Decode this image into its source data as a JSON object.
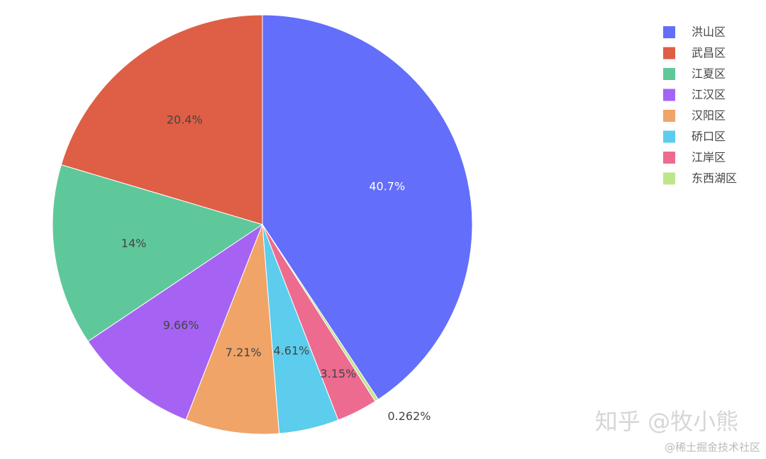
{
  "chart_data": {
    "type": "pie",
    "categories": [
      "洪山区",
      "武昌区",
      "江夏区",
      "江汉区",
      "汉阳区",
      "硚口区",
      "江岸区",
      "东西湖区"
    ],
    "values": [
      40.7,
      20.4,
      14,
      9.66,
      7.21,
      4.61,
      3.15,
      0.262
    ],
    "value_labels": [
      "40.7%",
      "20.4%",
      "14%",
      "9.66%",
      "7.21%",
      "4.61%",
      "3.15%",
      "0.262%"
    ],
    "colors": [
      "#636efa",
      "#de5f45",
      "#5fc89a",
      "#a663f3",
      "#f0a468",
      "#5ccdec",
      "#ec6b8f",
      "#bde68a"
    ],
    "legend": "top-right",
    "watermarks": [
      "知乎 @牧小熊",
      "@稀土掘金技术社区"
    ]
  }
}
